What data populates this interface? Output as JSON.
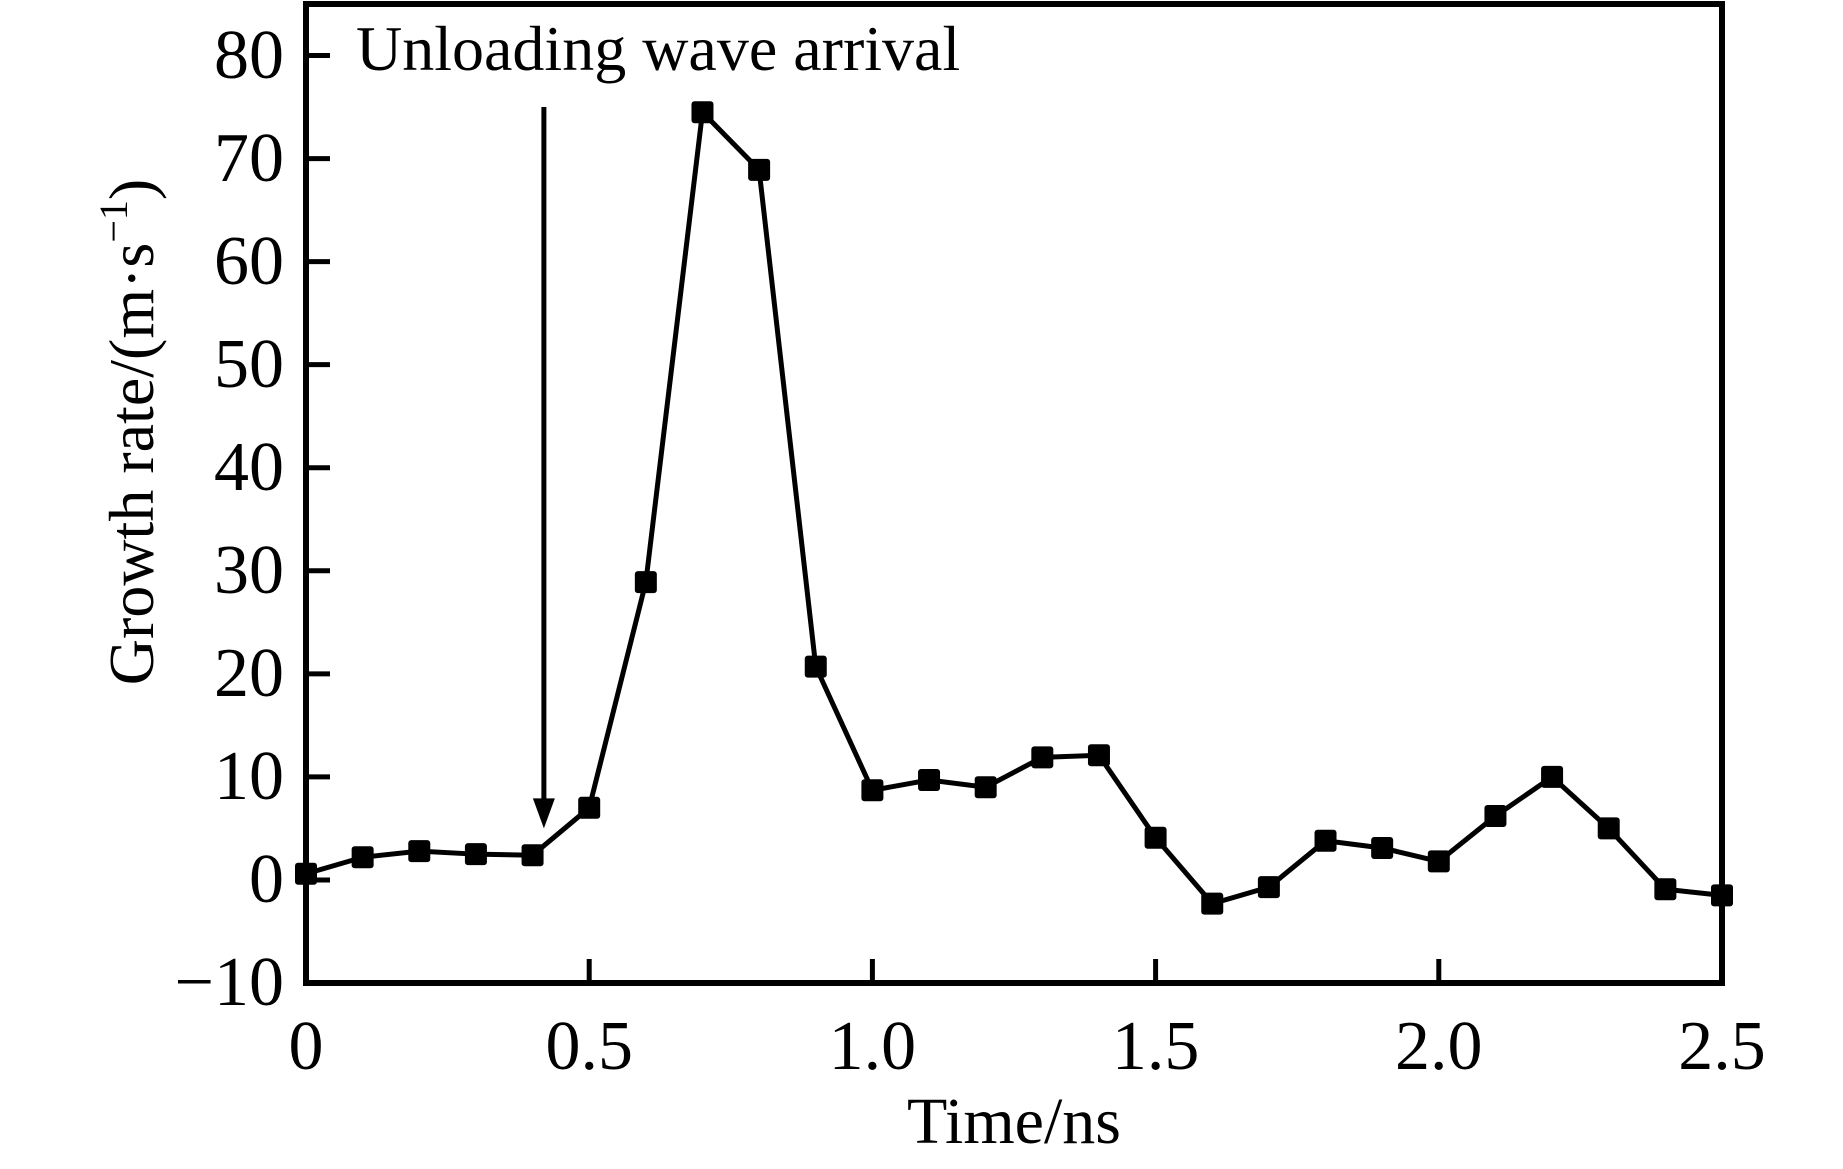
{
  "figure": {
    "background_color": "#ffffff",
    "foreground_color": "#000000"
  },
  "chart_data": {
    "type": "line",
    "title": "",
    "xlabel": "Time/ns",
    "ylabel": {
      "prefix": "Growth rate/(m·s",
      "sup": "−1",
      "suffix": ")"
    },
    "x": [
      0.0,
      0.1,
      0.2,
      0.3,
      0.4,
      0.5,
      0.6,
      0.7,
      0.8,
      0.9,
      1.0,
      1.1,
      1.2,
      1.3,
      1.4,
      1.5,
      1.6,
      1.7,
      1.8,
      1.9,
      2.0,
      2.1,
      2.2,
      2.3,
      2.4,
      2.5
    ],
    "y": [
      0.6,
      2.2,
      2.8,
      2.5,
      2.4,
      7.0,
      28.9,
      74.5,
      68.9,
      20.7,
      8.7,
      9.7,
      9.0,
      11.9,
      12.1,
      4.1,
      -2.3,
      -0.7,
      3.8,
      3.1,
      1.8,
      6.2,
      10.0,
      5.0,
      -0.9,
      -1.5
    ],
    "xlim": [
      0,
      2.5
    ],
    "ylim": [
      -10,
      85
    ],
    "x_tick_values": [
      0,
      0.5,
      1.0,
      1.5,
      2.0,
      2.5
    ],
    "x_tick_labels": [
      "0",
      "0.5",
      "1.0",
      "1.5",
      "2.0",
      "2.5"
    ],
    "y_tick_values": [
      -10,
      0,
      10,
      20,
      30,
      40,
      50,
      60,
      70,
      80
    ],
    "y_tick_labels": [
      "−10",
      "0",
      "10",
      "20",
      "30",
      "40",
      "50",
      "60",
      "70",
      "80"
    ],
    "grid": false,
    "legend": null,
    "marker": "square",
    "line_color": "#000000",
    "marker_color": "#000000",
    "annotation": {
      "text": "Unloading wave arrival",
      "arrow_x_ns": 0.42,
      "arrow_top_value": 75,
      "arrow_tip_value": 5
    }
  }
}
